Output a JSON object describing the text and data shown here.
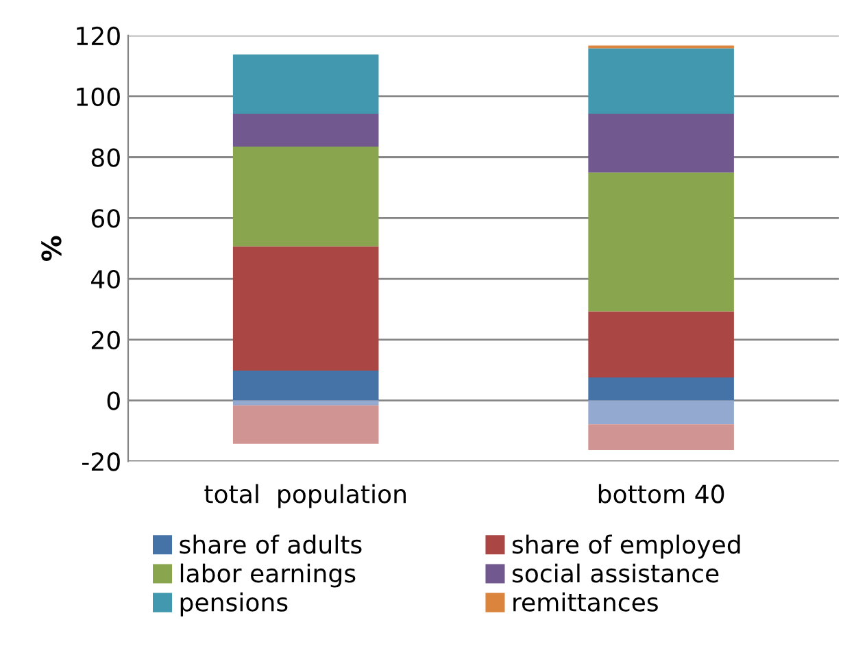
{
  "chart_data": {
    "type": "bar",
    "stacked": true,
    "ylabel": "%",
    "categories": [
      "total  population",
      "bottom 40"
    ],
    "series": [
      {
        "name": "share of adults",
        "color": "#4572a7",
        "values": [
          9.8,
          7.6
        ]
      },
      {
        "name": "share of employed",
        "color": "#aa4643",
        "values": [
          40.9,
          21.7
        ]
      },
      {
        "name": "labor earnings",
        "color": "#89a54e",
        "values": [
          32.8,
          45.7
        ]
      },
      {
        "name": "social assistance",
        "color": "#71588f",
        "values": [
          10.8,
          19.3
        ]
      },
      {
        "name": "pensions",
        "color": "#4198af",
        "values": [
          19.5,
          21.5
        ]
      },
      {
        "name": "remittances",
        "color": "#db843d",
        "values": [
          null,
          0.9
        ]
      },
      {
        "color": "#93a9cf",
        "values": [
          -1.6,
          -7.8
        ]
      },
      {
        "color": "#d09493",
        "values": [
          -12.6,
          -8.5
        ]
      }
    ],
    "ylim": [
      -20,
      120
    ],
    "yticks": [
      -20,
      0,
      20,
      40,
      60,
      80,
      100,
      120
    ],
    "grid": "y",
    "legend": "bottom"
  }
}
